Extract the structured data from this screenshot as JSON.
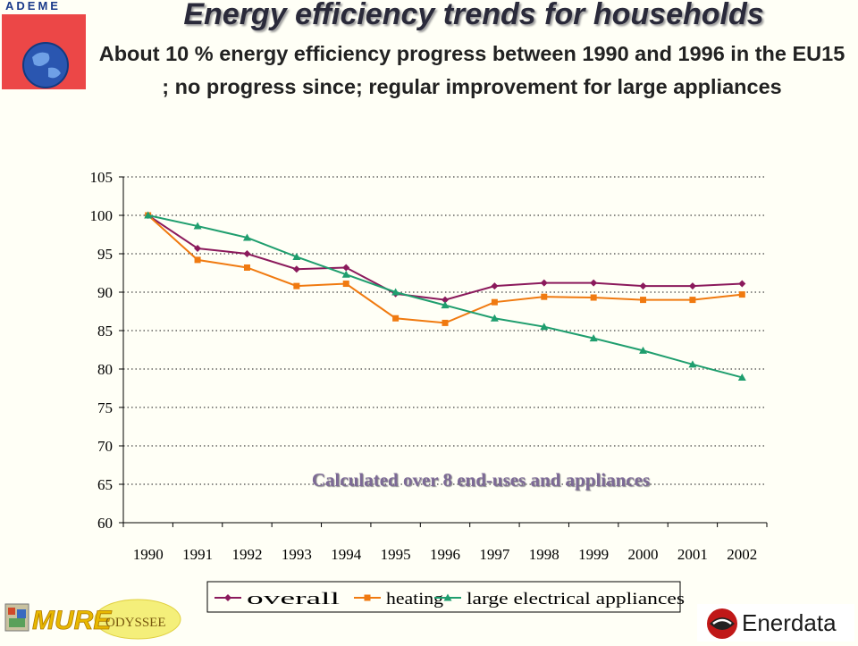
{
  "header": {
    "logo_text": "ADEME",
    "title": "Energy efficiency trends for households",
    "subtitle": "About 10 % energy efficiency progress between 1990 and 1996 in the EU15 ; no progress since; regular improvement for large appliances"
  },
  "footer": {
    "mure_logo_text": "MURE",
    "odyssee_logo_text": "ODYSSEE",
    "enerdata_logo_text": "Enerdata"
  },
  "chart_data": {
    "type": "line",
    "annotation": "Calculated over 8 end-uses and appliances",
    "categories": [
      "1990",
      "1991",
      "1992",
      "1993",
      "1994",
      "1995",
      "1996",
      "1997",
      "1998",
      "1999",
      "2000",
      "2001",
      "2002"
    ],
    "ylim": [
      60,
      105
    ],
    "yticks": [
      60,
      65,
      70,
      75,
      80,
      85,
      90,
      95,
      100,
      105
    ],
    "grid": true,
    "legend_position": "bottom",
    "series": [
      {
        "name": "overall",
        "color": "#8b1a5c",
        "marker": "diamond",
        "values": [
          100,
          95.7,
          95.0,
          93.0,
          93.2,
          89.8,
          89.0,
          90.8,
          91.2,
          91.2,
          90.8,
          90.8,
          91.1
        ]
      },
      {
        "name": "heating",
        "color": "#f07a10",
        "marker": "square",
        "values": [
          100,
          94.2,
          93.2,
          90.8,
          91.1,
          86.6,
          86.0,
          88.7,
          89.4,
          89.3,
          89.0,
          89.0,
          89.7
        ]
      },
      {
        "name": "large electrical appliances",
        "color": "#1f9e6e",
        "marker": "triangle",
        "values": [
          100,
          98.6,
          97.1,
          94.6,
          92.3,
          90.0,
          88.3,
          86.6,
          85.5,
          84.0,
          82.4,
          80.6,
          78.9
        ]
      }
    ]
  }
}
